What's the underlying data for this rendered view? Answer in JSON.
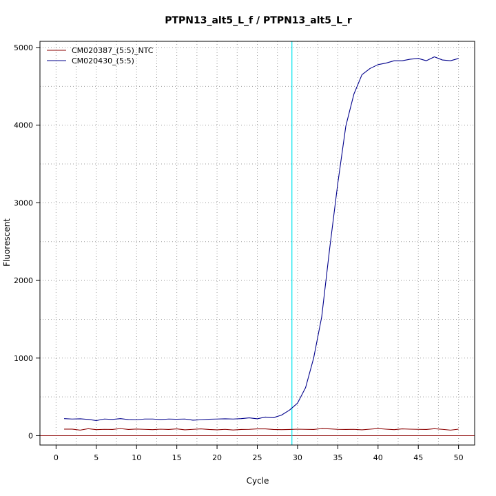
{
  "chart_data": {
    "type": "line",
    "title": "PTPN13_alt5_L_f / PTPN13_alt5_L_r",
    "xlabel": "Cycle",
    "ylabel": "Fluorescent",
    "xlim": [
      -2,
      52
    ],
    "ylim": [
      -120,
      5080
    ],
    "x_ticks": [
      0,
      5,
      10,
      15,
      20,
      25,
      30,
      35,
      40,
      45,
      50
    ],
    "y_ticks": [
      0,
      1000,
      2000,
      3000,
      4000,
      5000
    ],
    "x_grid": [
      2.5,
      7.5,
      12.5,
      17.5,
      22.5,
      27.5,
      32.5,
      37.5,
      42.5,
      47.5
    ],
    "y_grid": [
      500,
      1000,
      1500,
      2000,
      2500,
      3000,
      3500,
      4000,
      4500,
      5000
    ],
    "grid": true,
    "legend_position": "top-left",
    "threshold": {
      "x": 29.3,
      "color": "#00e5ee"
    },
    "baseline": {
      "y": 0,
      "color": "#8b0000"
    },
    "x": [
      1,
      2,
      3,
      4,
      5,
      6,
      7,
      8,
      9,
      10,
      11,
      12,
      13,
      14,
      15,
      16,
      17,
      18,
      19,
      20,
      21,
      22,
      23,
      24,
      25,
      26,
      27,
      28,
      29,
      30,
      31,
      32,
      33,
      34,
      35,
      36,
      37,
      38,
      39,
      40,
      41,
      42,
      43,
      44,
      45,
      46,
      47,
      48,
      49,
      50
    ],
    "series": [
      {
        "name": "CM020387_(5:5)_NTC",
        "color": "#8b0000",
        "values": [
          85,
          85,
          72,
          90,
          78,
          82,
          80,
          92,
          80,
          86,
          82,
          78,
          84,
          80,
          88,
          76,
          82,
          88,
          80,
          76,
          82,
          74,
          80,
          82,
          88,
          88,
          80,
          78,
          80,
          84,
          82,
          80,
          92,
          88,
          82,
          80,
          82,
          76,
          84,
          92,
          84,
          78,
          88,
          84,
          82,
          80,
          90,
          82,
          72,
          84
        ]
      },
      {
        "name": "CM020430_(5:5)",
        "color": "#00008b",
        "values": [
          220,
          215,
          218,
          210,
          195,
          215,
          210,
          220,
          208,
          205,
          215,
          215,
          208,
          215,
          212,
          215,
          200,
          205,
          212,
          215,
          218,
          215,
          220,
          230,
          218,
          240,
          232,
          265,
          330,
          420,
          620,
          1000,
          1530,
          2420,
          3250,
          3990,
          4400,
          4650,
          4730,
          4780,
          4800,
          4830,
          4830,
          4850,
          4860,
          4830,
          4880,
          4840,
          4830,
          4860
        ]
      }
    ]
  }
}
